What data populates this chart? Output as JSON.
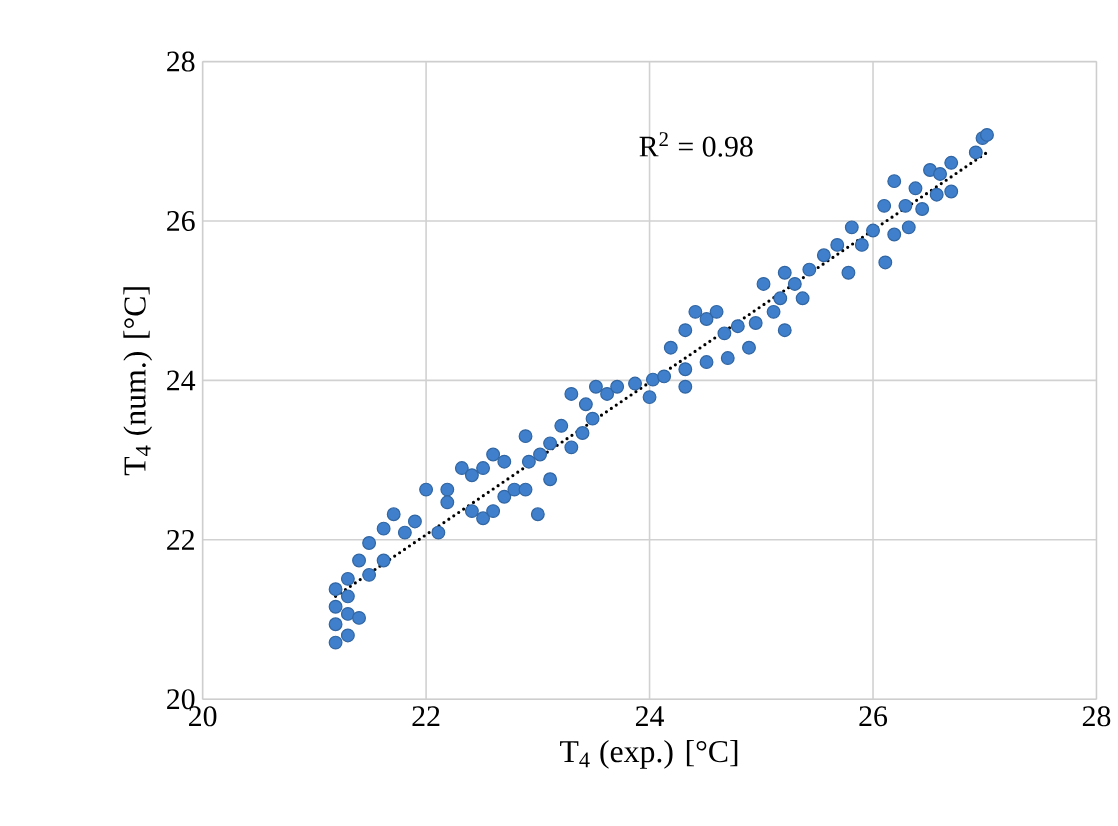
{
  "chart_data": {
    "type": "scatter",
    "xlabel": "T$_{4}$ (exp.) [°C]",
    "ylabel": "T$_{4}$ (num.) [°C]",
    "annotations": [
      "R$^{2}$ = 0.98"
    ],
    "xlim": [
      20,
      28
    ],
    "ylim": [
      20,
      28
    ],
    "xticks": [
      20,
      22,
      24,
      26,
      28
    ],
    "yticks": [
      20,
      22,
      24,
      26,
      28
    ],
    "grid": true,
    "marker": "circle",
    "series": [
      {
        "color": "#3f7fcb",
        "x": [
          21.19,
          21.19,
          21.19,
          21.19,
          21.3,
          21.3,
          21.3,
          21.3,
          21.4,
          21.4,
          21.49,
          21.62,
          21.49,
          21.62,
          21.71,
          21.81,
          21.9,
          22.0,
          22.11,
          22.19,
          22.19,
          22.32,
          22.41,
          22.51,
          22.41,
          22.51,
          22.6,
          22.6,
          22.7,
          22.7,
          22.79,
          22.89,
          22.89,
          22.92,
          23.0,
          23.02,
          23.11,
          23.11,
          23.21,
          23.3,
          23.3,
          23.4,
          23.43,
          23.49,
          23.52,
          23.62,
          23.71,
          23.87,
          24.0,
          24.03,
          24.13,
          24.19,
          24.32,
          24.32,
          24.32,
          24.41,
          24.51,
          24.51,
          24.6,
          24.7,
          24.67,
          24.79,
          24.89,
          24.95,
          25.02,
          25.11,
          25.17,
          25.21,
          25.21,
          25.3,
          25.37,
          25.43,
          25.56,
          25.68,
          25.78,
          25.81,
          25.9,
          26.0,
          26.11,
          26.1,
          26.19,
          26.19,
          26.29,
          26.32,
          26.38,
          26.44,
          26.51,
          26.57,
          26.6,
          26.7,
          26.7,
          26.92,
          26.98,
          27.02
        ],
        "values": [
          20.71,
          20.94,
          21.16,
          21.38,
          21.51,
          21.29,
          21.07,
          20.8,
          21.02,
          21.74,
          21.56,
          21.74,
          21.96,
          22.14,
          22.32,
          22.09,
          22.23,
          22.63,
          22.09,
          22.63,
          22.47,
          22.9,
          22.81,
          22.9,
          22.36,
          22.27,
          23.07,
          22.36,
          22.54,
          22.98,
          22.63,
          22.63,
          23.3,
          22.98,
          22.32,
          23.07,
          22.76,
          23.21,
          23.43,
          23.16,
          23.83,
          23.34,
          23.7,
          23.52,
          23.92,
          23.83,
          23.92,
          23.96,
          23.79,
          24.01,
          24.05,
          24.41,
          23.92,
          24.14,
          24.63,
          24.86,
          24.23,
          24.77,
          24.86,
          24.28,
          24.59,
          24.68,
          24.41,
          24.72,
          25.21,
          24.86,
          25.03,
          24.63,
          25.35,
          25.21,
          25.03,
          25.39,
          25.57,
          25.7,
          25.35,
          25.92,
          25.7,
          25.88,
          25.48,
          26.19,
          26.5,
          25.83,
          26.19,
          25.92,
          26.41,
          26.15,
          26.64,
          26.33,
          26.59,
          26.73,
          26.37,
          26.86,
          27.04,
          27.08
        ]
      },
      {
        "type": "line",
        "color": "#000000",
        "marker": "none",
        "line_style": "dotted",
        "x": [
          21.19,
          27.02
        ],
        "values": [
          21.29,
          26.86
        ]
      }
    ]
  }
}
